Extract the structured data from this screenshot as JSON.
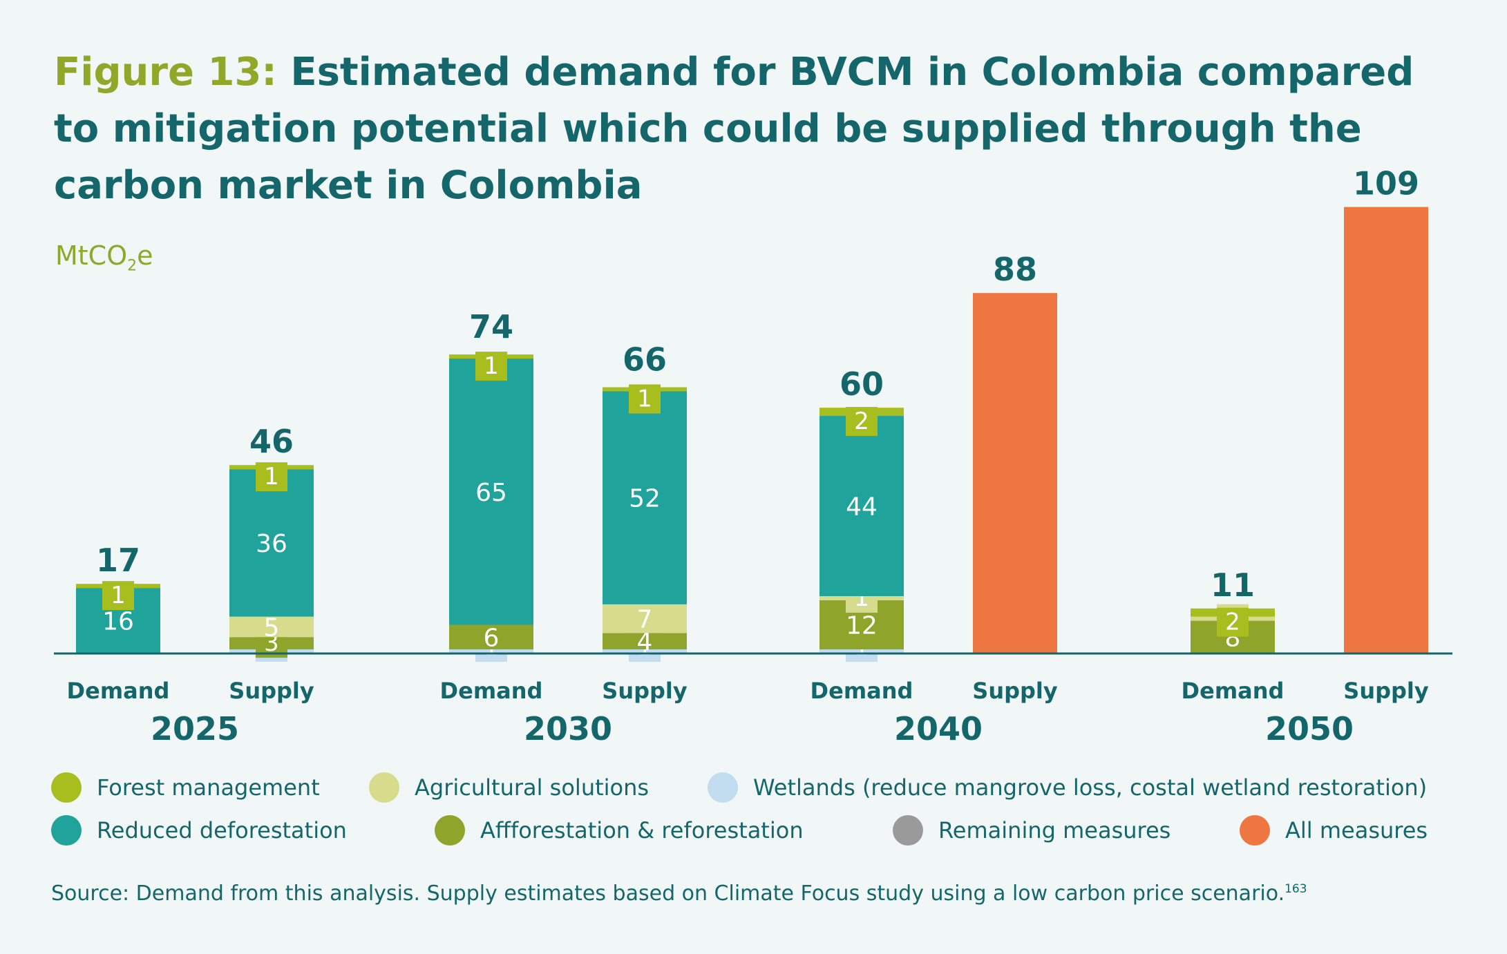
{
  "title": {
    "figure_label": "Figure 13:",
    "text": "Estimated demand for BVCM in Colombia compared to mitigation potential which could be supplied through the carbon market in Colombia"
  },
  "unit": {
    "main": "MtCO",
    "sub": "2",
    "tail": "e"
  },
  "colors": {
    "forest_management": "#a8bd1e",
    "agricultural_solutions": "#d6dc8c",
    "wetlands": "#c2dcf0",
    "reduced_deforestation": "#1fa39a",
    "afforestation": "#8fa42a",
    "remaining": "#9a9a9a",
    "all_measures": "#ee7640",
    "text": "#14666b"
  },
  "legend": [
    {
      "key": "forest_management",
      "label": "Forest management"
    },
    {
      "key": "agricultural_solutions",
      "label": "Agricultural solutions"
    },
    {
      "key": "wetlands",
      "label": "Wetlands (reduce mangrove loss, costal wetland restoration)"
    },
    {
      "key": "reduced_deforestation",
      "label": "Reduced deforestation"
    },
    {
      "key": "afforestation",
      "label": "Affforestation & reforestation"
    },
    {
      "key": "remaining",
      "label": "Remaining measures"
    },
    {
      "key": "all_measures",
      "label": "All measures"
    }
  ],
  "source": {
    "text": "Source: Demand from this analysis. Supply estimates based on Climate Focus study using a low carbon price scenario.",
    "footnote": "163"
  },
  "chart_data": {
    "type": "bar",
    "stacked": true,
    "unit": "MtCO2e",
    "groups": [
      "2025",
      "2030",
      "2040",
      "2050"
    ],
    "bars": [
      {
        "group": "2025",
        "label": "Demand",
        "total": 17,
        "segments": [
          {
            "key": "reduced_deforestation",
            "value": 16
          },
          {
            "key": "forest_management",
            "value": 1
          }
        ]
      },
      {
        "group": "2025",
        "label": "Supply",
        "total": 46,
        "segments": [
          {
            "key": "wetlands",
            "value": 1
          },
          {
            "key": "afforestation",
            "value": 3
          },
          {
            "key": "agricultural_solutions",
            "value": 5
          },
          {
            "key": "reduced_deforestation",
            "value": 36
          },
          {
            "key": "forest_management",
            "value": 1
          }
        ]
      },
      {
        "group": "2030",
        "label": "Demand",
        "total": 74,
        "segments": [
          {
            "key": "wetlands",
            "value": 1
          },
          {
            "key": "afforestation",
            "value": 6
          },
          {
            "key": "reduced_deforestation",
            "value": 65
          },
          {
            "key": "forest_management",
            "value": 1
          }
        ]
      },
      {
        "group": "2030",
        "label": "Supply",
        "total": 66,
        "segments": [
          {
            "key": "wetlands",
            "value": 1
          },
          {
            "key": "afforestation",
            "value": 4
          },
          {
            "key": "agricultural_solutions",
            "value": 7
          },
          {
            "key": "reduced_deforestation",
            "value": 52
          },
          {
            "key": "forest_management",
            "value": 1
          }
        ]
      },
      {
        "group": "2040",
        "label": "Demand",
        "total": 60,
        "segments": [
          {
            "key": "wetlands",
            "value": 1
          },
          {
            "key": "afforestation",
            "value": 12
          },
          {
            "key": "agricultural_solutions",
            "value": 1
          },
          {
            "key": "reduced_deforestation",
            "value": 44
          },
          {
            "key": "forest_management",
            "value": 2
          }
        ]
      },
      {
        "group": "2040",
        "label": "Supply",
        "total": 88,
        "segments": [
          {
            "key": "all_measures",
            "value": 88
          }
        ]
      },
      {
        "group": "2050",
        "label": "Demand",
        "total": 11,
        "segments": [
          {
            "key": "afforestation",
            "value": 8
          },
          {
            "key": "agricultural_solutions",
            "value": 1
          },
          {
            "key": "forest_management",
            "value": 2
          }
        ]
      },
      {
        "group": "2050",
        "label": "Supply",
        "total": 109,
        "segments": [
          {
            "key": "all_measures",
            "value": 109
          }
        ]
      }
    ]
  }
}
